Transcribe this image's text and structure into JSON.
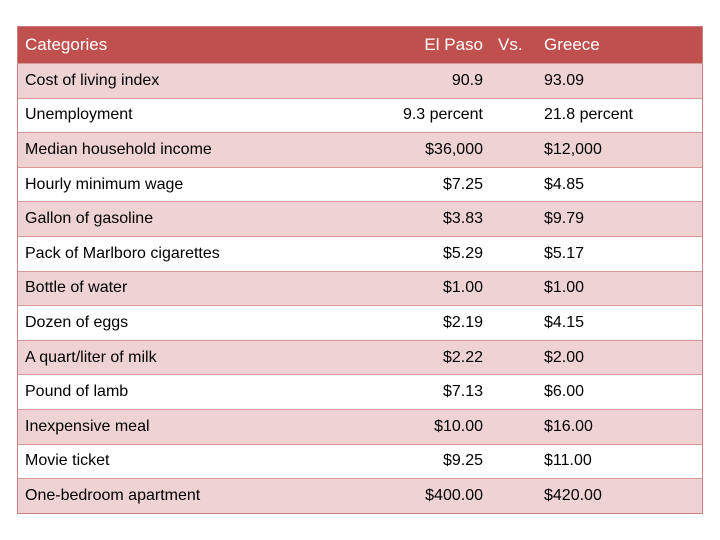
{
  "table": {
    "header": [
      "Categories",
      "El Paso",
      "Vs.",
      "Greece"
    ],
    "rows": [
      [
        "Cost of living index",
        "90.9",
        "93.09"
      ],
      [
        "Unemployment",
        "9.3 percent",
        "21.8 percent"
      ],
      [
        "Median household income",
        "$36,000",
        "$12,000"
      ],
      [
        "Hourly minimum wage",
        "$7.25",
        "$4.85"
      ],
      [
        "Gallon of gasoline",
        "$3.83",
        "$9.79"
      ],
      [
        "Pack of Marlboro cigarettes",
        "$5.29",
        "$5.17"
      ],
      [
        "Bottle of water",
        "$1.00",
        "$1.00"
      ],
      [
        "Dozen of eggs",
        "$2.19",
        "$4.15"
      ],
      [
        "A quart/liter of milk",
        "$2.22",
        "$2.00"
      ],
      [
        "Pound of lamb",
        "$7.13",
        "$6.00"
      ],
      [
        "Inexpensive meal",
        "$10.00",
        "$16.00"
      ],
      [
        "Movie ticket",
        "$9.25",
        "$11.00"
      ],
      [
        "One-bedroom apartment",
        "$400.00",
        "$420.00"
      ]
    ]
  }
}
